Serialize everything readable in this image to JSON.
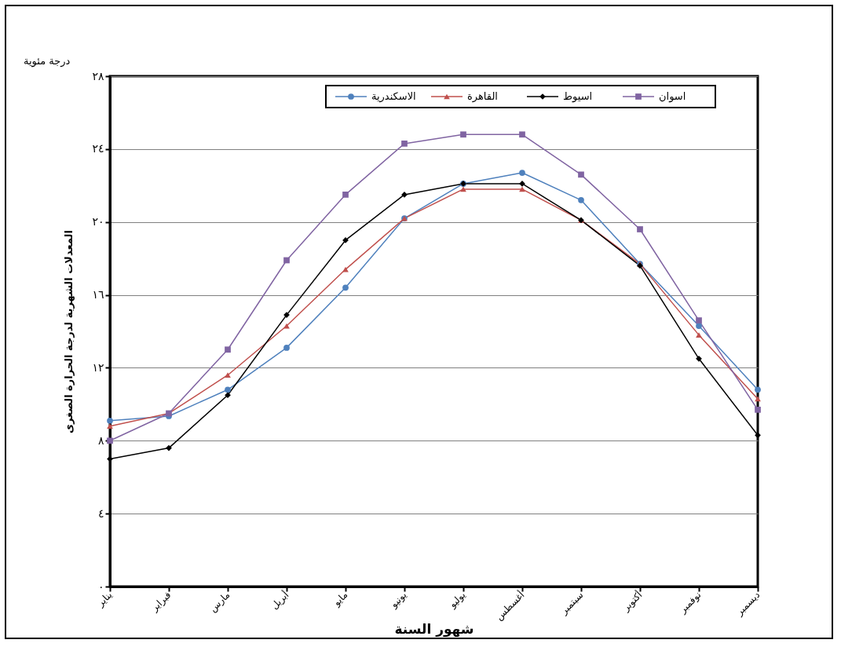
{
  "chart_data": {
    "type": "line",
    "xlabel": "شهور السنة",
    "ylabel": "المعدلات الشهرية لدرجة الحرارة الصغرى",
    "annotations": [
      "درجة مئوية"
    ],
    "categories": [
      "يناير",
      "فبراير",
      "مارس",
      "أبريل",
      "مايو",
      "يونيو",
      "يوليو",
      "أغسطس",
      "سبتمبر",
      "أكتوبر",
      "نوفمبر",
      "ديسمبر"
    ],
    "series": [
      {
        "name": "الاسكندرية",
        "color": "#4f81bd",
        "marker": "circle",
        "values": [
          9.1,
          9.35,
          10.8,
          13.1,
          16.4,
          20.2,
          22.1,
          22.7,
          21.2,
          17.7,
          14.3,
          10.8
        ]
      },
      {
        "name": "القاهرة",
        "color": "#c0504d",
        "marker": "triangle",
        "values": [
          8.8,
          9.5,
          11.6,
          14.3,
          17.4,
          20.2,
          21.8,
          21.8,
          20.1,
          17.7,
          13.8,
          10.3
        ]
      },
      {
        "name": "اسيوط",
        "color": "#000000",
        "marker": "diamond",
        "values": [
          7.0,
          7.6,
          10.5,
          14.9,
          19.0,
          21.5,
          22.1,
          22.1,
          20.1,
          17.6,
          12.5,
          8.3
        ]
      },
      {
        "name": "اسوان",
        "color": "#8064a2",
        "marker": "square",
        "values": [
          8.0,
          9.5,
          13.0,
          17.9,
          21.5,
          24.3,
          24.8,
          24.8,
          22.6,
          19.6,
          14.6,
          9.7
        ]
      }
    ],
    "ylim": [
      0,
      28
    ],
    "yticks": [
      {
        "value": 0,
        "label": "٠"
      },
      {
        "value": 4,
        "label": "٤"
      },
      {
        "value": 8,
        "label": "٨"
      },
      {
        "value": 12,
        "label": "١٢"
      },
      {
        "value": 16,
        "label": "١٦"
      },
      {
        "value": 20,
        "label": "٢٠"
      },
      {
        "value": 24,
        "label": "٢٤"
      },
      {
        "value": 28,
        "label": "٢٨"
      }
    ],
    "grid": "y",
    "legend": "top"
  }
}
